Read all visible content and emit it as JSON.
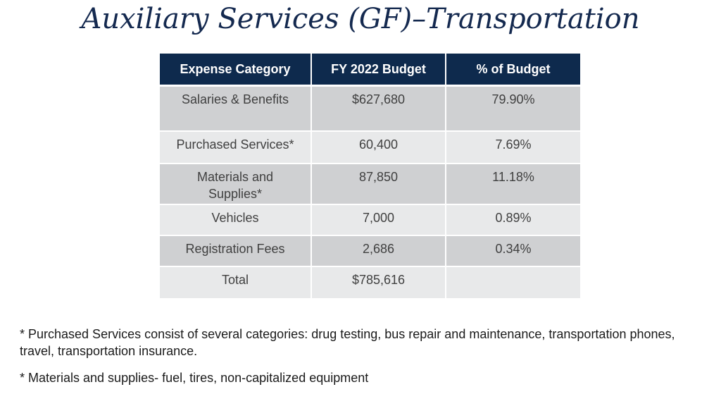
{
  "title": "Auxiliary Services (GF)–Transportation",
  "table": {
    "headers": [
      "Expense Category",
      "FY 2022 Budget",
      "% of Budget"
    ],
    "rows": [
      {
        "category": "Salaries & Benefits",
        "budget": "$627,680",
        "percent": "79.90%"
      },
      {
        "category": "Purchased Services*",
        "budget": "60,400",
        "percent": "7.69%"
      },
      {
        "category": "Materials and Supplies*",
        "budget": "87,850",
        "percent": "11.18%"
      },
      {
        "category": "Vehicles",
        "budget": "7,000",
        "percent": "0.89%"
      },
      {
        "category": "Registration Fees",
        "budget": "2,686",
        "percent": "0.34%"
      },
      {
        "category": "Total",
        "budget": "$785,616",
        "percent": ""
      }
    ]
  },
  "footnotes": [
    "* Purchased Services consist of several categories: drug testing, bus repair and maintenance, transportation phones, travel, transportation insurance.",
    "* Materials and supplies- fuel, tires, non-capitalized equipment"
  ]
}
